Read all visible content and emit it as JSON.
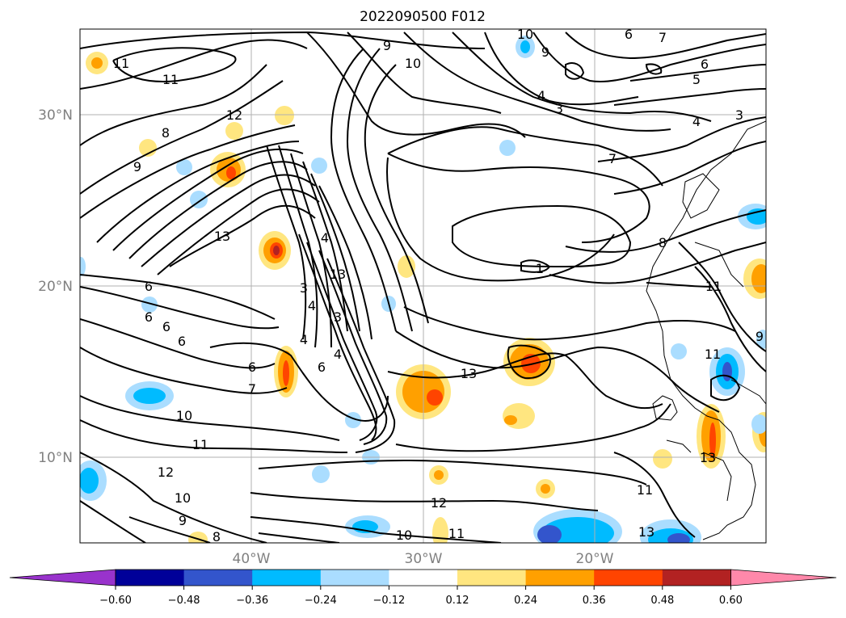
{
  "title": "2022090500 F012",
  "lat_labels": [
    "30°N",
    "20°N",
    "10°N"
  ],
  "lon_labels": [
    "40°W",
    "30°W",
    "20°W"
  ],
  "colorbar": {
    "ticks": [
      "−0.60",
      "−0.48",
      "−0.36",
      "−0.24",
      "−0.12",
      "0.12",
      "0.24",
      "0.36",
      "0.48",
      "0.60"
    ],
    "colors": [
      "#9933cc",
      "#000099",
      "#3355cc",
      "#00bbff",
      "#aaddff",
      "#ffffff",
      "#ffe680",
      "#ffa000",
      "#ff4400",
      "#b22222",
      "#ff88aa"
    ]
  },
  "contour_labels": [
    "9",
    "10",
    "11",
    "12",
    "13",
    "3",
    "4",
    "5",
    "6",
    "7",
    "8",
    "4",
    "13",
    "3",
    "4",
    "6",
    "7",
    "10",
    "11",
    "12",
    "13",
    "6",
    "5",
    "4",
    "3",
    "7",
    "8",
    "11",
    "9",
    "6",
    "6",
    "6",
    "9",
    "11",
    "12",
    "10",
    "9",
    "8",
    "10",
    "11",
    "13",
    "1",
    "13",
    "11",
    "9",
    "11",
    "3",
    "8",
    "6",
    "7",
    "13",
    "4",
    "3",
    "4",
    "4",
    "6",
    "10"
  ]
}
